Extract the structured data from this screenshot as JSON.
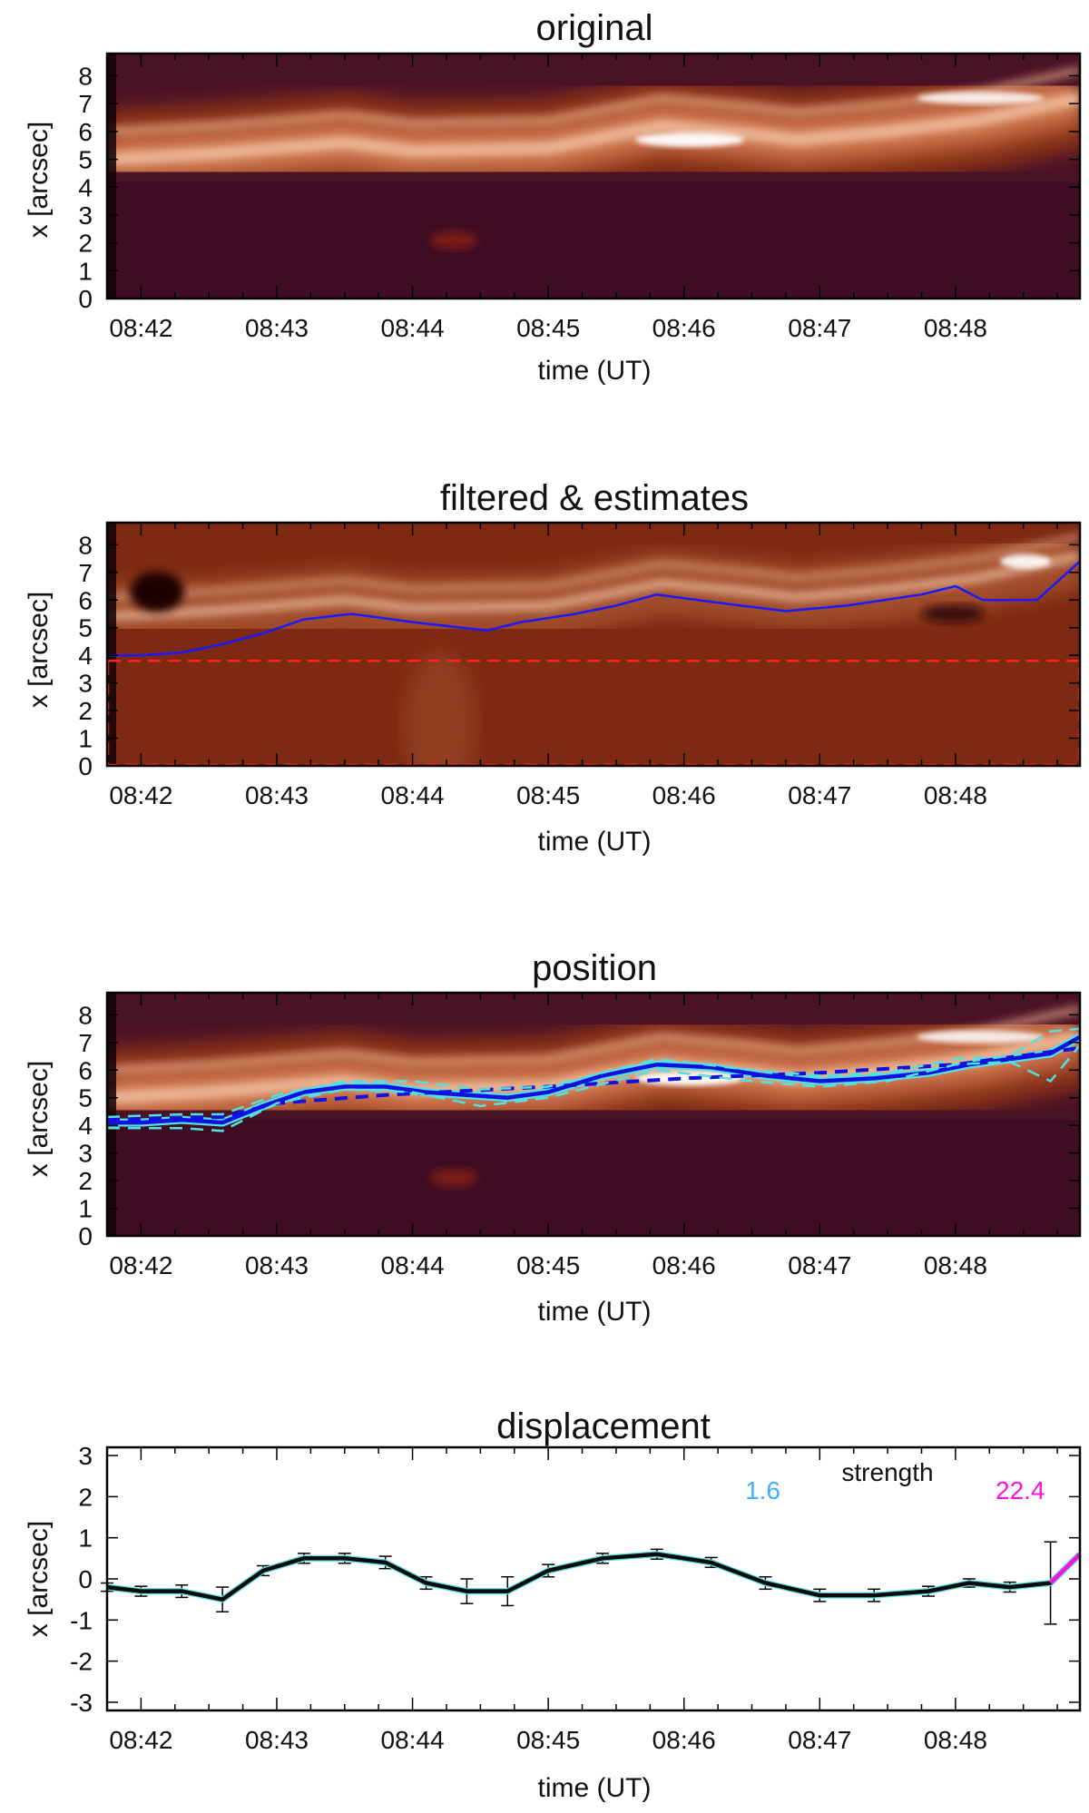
{
  "figure": {
    "panels": [
      {
        "title": "original"
      },
      {
        "title": "filtered & estimates"
      },
      {
        "title": "position"
      },
      {
        "title": "displacement"
      }
    ]
  },
  "colors": {
    "estimate_line": "#1a1aff",
    "box_dashed": "#ff2020",
    "envelope": "#55e0e0",
    "fit_line": "#1010e0",
    "disp_line": "#0a0a0a",
    "strength_low": "#3fb0ff",
    "strength_high": "#ff10e0"
  },
  "chart_data": [
    {
      "type": "heatmap",
      "title": "original",
      "xlabel": "time (UT)",
      "ylabel": "x [arcsec]",
      "xticks": [
        "08:42",
        "08:43",
        "08:44",
        "08:45",
        "08:46",
        "08:47",
        "08:48"
      ],
      "yticks": [
        "0",
        "1",
        "2",
        "3",
        "4",
        "5",
        "6",
        "7",
        "8"
      ],
      "xlim": [
        "08:41:45",
        "08:48:55"
      ],
      "ylim": [
        0,
        8.8
      ],
      "colormap": "dark purple - red-brown - white",
      "bright_ridge": {
        "t": [
          "08:41:45",
          "08:42:30",
          "08:43:30",
          "08:44:00",
          "08:45:00",
          "08:45:50",
          "08:46:30",
          "08:46:50",
          "08:47:30",
          "08:48:10",
          "08:48:55"
        ],
        "x": [
          5.0,
          5.2,
          5.6,
          5.3,
          5.4,
          6.2,
          5.9,
          5.7,
          6.0,
          6.4,
          7.2
        ]
      }
    },
    {
      "type": "heatmap",
      "title": "filtered & estimates",
      "xlabel": "time (UT)",
      "ylabel": "x [arcsec]",
      "xticks": [
        "08:42",
        "08:43",
        "08:44",
        "08:45",
        "08:46",
        "08:47",
        "08:48"
      ],
      "yticks": [
        "0",
        "1",
        "2",
        "3",
        "4",
        "5",
        "6",
        "7",
        "8"
      ],
      "xlim": [
        "08:41:45",
        "08:48:55"
      ],
      "ylim": [
        0,
        8.8
      ],
      "estimate_line": {
        "t": [
          "08:41:45",
          "08:42:00",
          "08:42:18",
          "08:42:36",
          "08:42:54",
          "08:43:12",
          "08:43:33",
          "08:44:00",
          "08:44:33",
          "08:44:48",
          "08:45:12",
          "08:45:30",
          "08:45:48",
          "08:46:15",
          "08:46:45",
          "08:47:12",
          "08:47:45",
          "08:48:00",
          "08:48:12",
          "08:48:36",
          "08:48:55"
        ],
        "x": [
          4.0,
          4.0,
          4.1,
          4.4,
          4.8,
          5.3,
          5.5,
          5.2,
          4.9,
          5.2,
          5.5,
          5.8,
          6.2,
          5.9,
          5.6,
          5.8,
          6.2,
          6.5,
          6.0,
          6.0,
          7.4
        ]
      },
      "box": {
        "t": [
          "08:41:45",
          "08:48:55"
        ],
        "x": [
          0,
          3.8
        ]
      }
    },
    {
      "type": "line",
      "title": "position",
      "xlabel": "time (UT)",
      "ylabel": "x [arcsec]",
      "xticks": [
        "08:42",
        "08:43",
        "08:44",
        "08:45",
        "08:46",
        "08:47",
        "08:48"
      ],
      "yticks": [
        "0",
        "1",
        "2",
        "3",
        "4",
        "5",
        "6",
        "7",
        "8"
      ],
      "xlim": [
        "08:41:45",
        "08:48:55"
      ],
      "ylim": [
        0,
        8.8
      ],
      "series": [
        {
          "style": "solid",
          "t": [
            "08:41:45",
            "08:42:00",
            "08:42:18",
            "08:42:36",
            "08:42:54",
            "08:43:12",
            "08:43:30",
            "08:43:48",
            "08:44:06",
            "08:44:24",
            "08:44:42",
            "08:45:00",
            "08:45:24",
            "08:45:48",
            "08:46:12",
            "08:46:36",
            "08:47:00",
            "08:47:24",
            "08:47:48",
            "08:48:06",
            "08:48:24",
            "08:48:42",
            "08:48:55"
          ],
          "x": [
            4.1,
            4.1,
            4.2,
            4.1,
            4.7,
            5.2,
            5.4,
            5.4,
            5.2,
            5.1,
            5.0,
            5.2,
            5.8,
            6.2,
            6.1,
            5.8,
            5.6,
            5.7,
            5.9,
            6.2,
            6.4,
            6.6,
            7.2
          ]
        },
        {
          "style": "dashed",
          "t": [
            "08:41:45",
            "08:42:36",
            "08:43:00",
            "08:43:48",
            "08:45:00",
            "08:46:00",
            "08:47:00",
            "08:48:00",
            "08:48:55"
          ],
          "x": [
            4.2,
            4.3,
            4.8,
            5.1,
            5.4,
            5.7,
            5.9,
            6.2,
            6.8
          ]
        },
        {
          "style": "envelope-upper",
          "t": [
            "08:41:45",
            "08:42:18",
            "08:42:36",
            "08:43:00",
            "08:43:30",
            "08:44:00",
            "08:44:30",
            "08:45:00",
            "08:45:48",
            "08:46:30",
            "08:47:00",
            "08:47:30",
            "08:48:00",
            "08:48:24",
            "08:48:42",
            "08:48:55"
          ],
          "x": [
            4.3,
            4.4,
            4.4,
            5.1,
            5.6,
            5.6,
            5.3,
            5.4,
            6.4,
            6.0,
            5.8,
            5.9,
            6.4,
            6.5,
            7.4,
            7.5
          ]
        },
        {
          "style": "envelope-lower",
          "t": [
            "08:41:45",
            "08:42:18",
            "08:42:36",
            "08:43:00",
            "08:43:30",
            "08:44:00",
            "08:44:30",
            "08:45:00",
            "08:45:48",
            "08:46:30",
            "08:47:00",
            "08:47:30",
            "08:48:00",
            "08:48:24",
            "08:48:42",
            "08:48:55"
          ],
          "x": [
            3.9,
            3.9,
            3.8,
            4.8,
            5.3,
            5.2,
            4.7,
            5.0,
            6.0,
            5.6,
            5.4,
            5.6,
            6.2,
            6.3,
            5.6,
            6.9
          ]
        }
      ]
    },
    {
      "type": "line",
      "title": "displacement",
      "xlabel": "time (UT)",
      "ylabel": "x [arcsec]",
      "xticks": [
        "08:42",
        "08:43",
        "08:44",
        "08:45",
        "08:46",
        "08:47",
        "08:48"
      ],
      "yticks": [
        "3",
        "2",
        "1",
        "0",
        "-1",
        "-2",
        "-3"
      ],
      "xlim": [
        "08:41:45",
        "08:48:55"
      ],
      "ylim": [
        -3.2,
        3.2
      ],
      "legend": {
        "label": "strength",
        "min": "1.6",
        "max": "22.4",
        "position": "top-right"
      },
      "series": [
        {
          "t": [
            "08:41:45",
            "08:42:00",
            "08:42:18",
            "08:42:36",
            "08:42:54",
            "08:43:12",
            "08:43:30",
            "08:43:48",
            "08:44:06",
            "08:44:24",
            "08:44:42",
            "08:45:00",
            "08:45:24",
            "08:45:48",
            "08:46:12",
            "08:46:36",
            "08:47:00",
            "08:47:24",
            "08:47:48",
            "08:48:06",
            "08:48:24",
            "08:48:42",
            "08:48:55"
          ],
          "x": [
            -0.2,
            -0.3,
            -0.3,
            -0.5,
            0.2,
            0.5,
            0.5,
            0.4,
            -0.1,
            -0.3,
            -0.3,
            0.2,
            0.5,
            0.6,
            0.4,
            -0.1,
            -0.4,
            -0.4,
            -0.3,
            -0.1,
            -0.2,
            -0.1,
            0.6
          ],
          "err": [
            0.1,
            0.12,
            0.15,
            0.3,
            0.12,
            0.12,
            0.12,
            0.15,
            0.15,
            0.3,
            0.35,
            0.15,
            0.12,
            0.12,
            0.12,
            0.15,
            0.15,
            0.15,
            0.12,
            0.1,
            0.12,
            1.0,
            0.0
          ]
        }
      ]
    }
  ]
}
